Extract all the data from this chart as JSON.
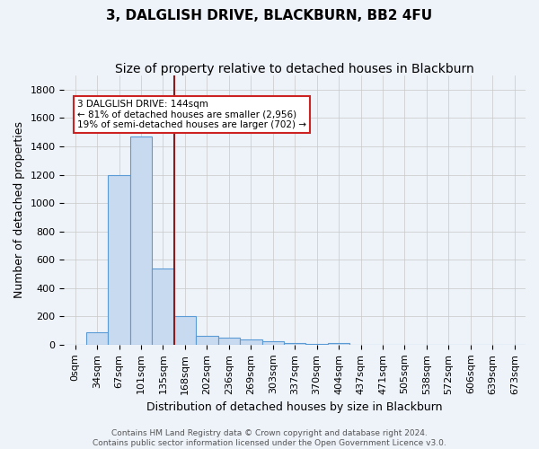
{
  "title": "3, DALGLISH DRIVE, BLACKBURN, BB2 4FU",
  "subtitle": "Size of property relative to detached houses in Blackburn",
  "xlabel": "Distribution of detached houses by size in Blackburn",
  "ylabel": "Number of detached properties",
  "footer_line1": "Contains HM Land Registry data © Crown copyright and database right 2024.",
  "footer_line2": "Contains public sector information licensed under the Open Government Licence v3.0.",
  "bar_labels": [
    "0sqm",
    "34sqm",
    "67sqm",
    "101sqm",
    "135sqm",
    "168sqm",
    "202sqm",
    "236sqm",
    "269sqm",
    "303sqm",
    "337sqm",
    "370sqm",
    "404sqm",
    "437sqm",
    "471sqm",
    "505sqm",
    "538sqm",
    "572sqm",
    "606sqm",
    "639sqm",
    "673sqm"
  ],
  "bar_values": [
    0,
    90,
    1200,
    1470,
    540,
    205,
    65,
    48,
    38,
    25,
    15,
    5,
    12,
    0,
    0,
    0,
    0,
    0,
    0,
    0,
    0
  ],
  "bar_color": "#c8daf0",
  "bar_edgecolor": "#5b9bd5",
  "vline_x": 4.5,
  "vline_color": "#8b1a1a",
  "annotation_text": "3 DALGLISH DRIVE: 144sqm\n← 81% of detached houses are smaller (2,956)\n19% of semi-detached houses are larger (702) →",
  "ylim": [
    0,
    1900
  ],
  "yticks": [
    0,
    200,
    400,
    600,
    800,
    1000,
    1200,
    1400,
    1600,
    1800
  ],
  "background_color": "#eef2f9",
  "grid_color": "#c8c8c8",
  "title_fontsize": 11,
  "subtitle_fontsize": 10,
  "axis_label_fontsize": 9,
  "tick_fontsize": 8,
  "footer_fontsize": 6.5
}
